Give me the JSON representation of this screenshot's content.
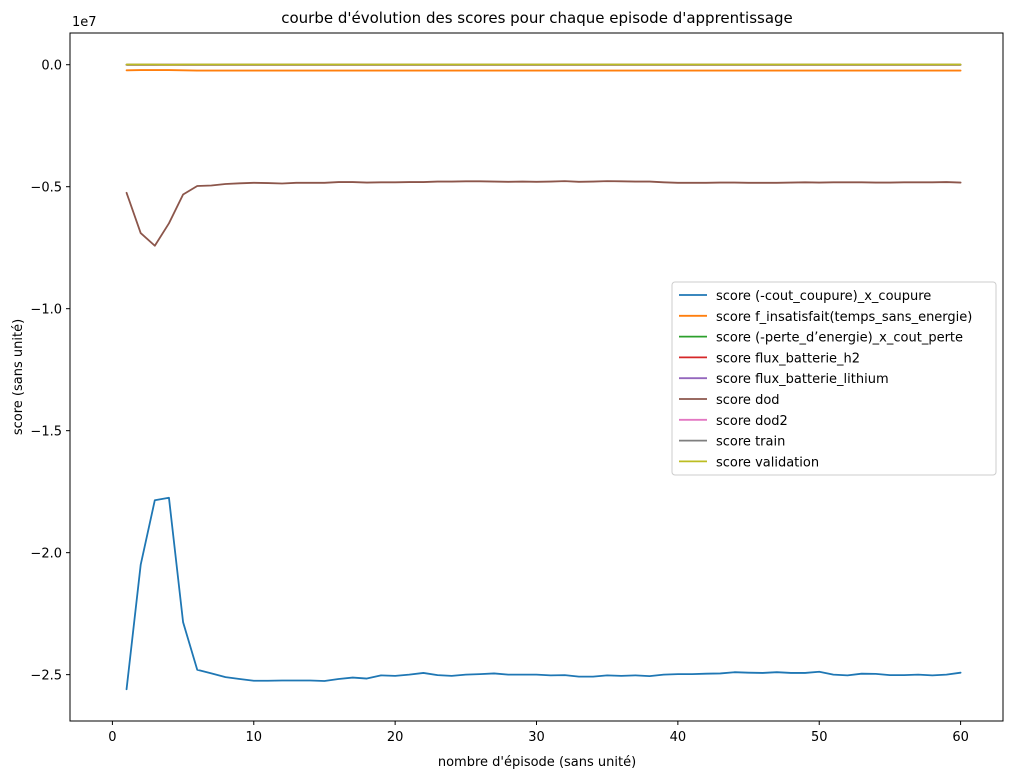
{
  "chart_data": {
    "type": "line",
    "title": "courbe d'évolution des scores pour chaque episode d'apprentissage",
    "xlabel": "nombre d'épisode (sans unité)",
    "ylabel": "score (sans unité)",
    "y_scale_label": "1e7",
    "y_multiplier": 10000000,
    "xlim": [
      -3,
      63
    ],
    "ylim": [
      -2.69,
      0.13
    ],
    "x_ticks": [
      0,
      10,
      20,
      30,
      40,
      50,
      60
    ],
    "x_tick_labels": [
      "0",
      "10",
      "20",
      "30",
      "40",
      "50",
      "60"
    ],
    "y_ticks": [
      0.0,
      -0.5,
      -1.0,
      -1.5,
      -2.0,
      -2.5
    ],
    "y_tick_labels": [
      "0.0",
      "−0.5",
      "−1.0",
      "−1.5",
      "−2.0",
      "−2.5"
    ],
    "grid": false,
    "legend_position": "center-right",
    "series": [
      {
        "name": "score (-cout_coupure)_x_coupure",
        "color": "#1f77b4",
        "x_start": 1,
        "x_step": 1,
        "values": [
          -2.56,
          -2.05,
          -1.785,
          -1.775,
          -2.285,
          -2.48,
          -2.495,
          -2.51,
          -2.518,
          -2.525,
          -2.525,
          -2.524,
          -2.524,
          -2.524,
          -2.526,
          -2.518,
          -2.512,
          -2.516,
          -2.503,
          -2.505,
          -2.5,
          -2.493,
          -2.502,
          -2.505,
          -2.5,
          -2.498,
          -2.495,
          -2.5,
          -2.5,
          -2.5,
          -2.503,
          -2.502,
          -2.508,
          -2.508,
          -2.503,
          -2.505,
          -2.503,
          -2.506,
          -2.5,
          -2.498,
          -2.498,
          -2.496,
          -2.495,
          -2.49,
          -2.492,
          -2.493,
          -2.49,
          -2.493,
          -2.493,
          -2.488,
          -2.5,
          -2.503,
          -2.496,
          -2.497,
          -2.502,
          -2.502,
          -2.5,
          -2.503,
          -2.5,
          -2.492
        ]
      },
      {
        "name": "score f_insatisfait(temps_sans_energie)",
        "color": "#ff7f0e",
        "x_start": 1,
        "x_step": 1,
        "values": [
          -0.023,
          -0.022,
          -0.022,
          -0.022,
          -0.023,
          -0.024,
          -0.024,
          -0.024,
          -0.024,
          -0.024,
          -0.024,
          -0.024,
          -0.024,
          -0.024,
          -0.024,
          -0.024,
          -0.024,
          -0.024,
          -0.024,
          -0.024,
          -0.024,
          -0.024,
          -0.024,
          -0.024,
          -0.024,
          -0.024,
          -0.024,
          -0.024,
          -0.024,
          -0.024,
          -0.024,
          -0.024,
          -0.024,
          -0.024,
          -0.024,
          -0.024,
          -0.024,
          -0.024,
          -0.024,
          -0.024,
          -0.024,
          -0.024,
          -0.024,
          -0.024,
          -0.024,
          -0.024,
          -0.024,
          -0.024,
          -0.024,
          -0.024,
          -0.024,
          -0.024,
          -0.024,
          -0.024,
          -0.024,
          -0.024,
          -0.024,
          -0.024,
          -0.024,
          -0.024
        ]
      },
      {
        "name": "score (-perte_d’energie)_x_cout_perte",
        "color": "#2ca02c",
        "x_start": 1,
        "x_step": 1,
        "values": [
          0,
          0,
          0,
          0,
          0,
          0,
          0,
          0,
          0,
          0,
          0,
          0,
          0,
          0,
          0,
          0,
          0,
          0,
          0,
          0,
          0,
          0,
          0,
          0,
          0,
          0,
          0,
          0,
          0,
          0,
          0,
          0,
          0,
          0,
          0,
          0,
          0,
          0,
          0,
          0,
          0,
          0,
          0,
          0,
          0,
          0,
          0,
          0,
          0,
          0,
          0,
          0,
          0,
          0,
          0,
          0,
          0,
          0,
          0,
          0
        ]
      },
      {
        "name": "score flux_batterie_h2",
        "color": "#d62728",
        "x_start": 1,
        "x_step": 1,
        "values": [
          0,
          0,
          0,
          0,
          0,
          0,
          0,
          0,
          0,
          0,
          0,
          0,
          0,
          0,
          0,
          0,
          0,
          0,
          0,
          0,
          0,
          0,
          0,
          0,
          0,
          0,
          0,
          0,
          0,
          0,
          0,
          0,
          0,
          0,
          0,
          0,
          0,
          0,
          0,
          0,
          0,
          0,
          0,
          0,
          0,
          0,
          0,
          0,
          0,
          0,
          0,
          0,
          0,
          0,
          0,
          0,
          0,
          0,
          0,
          0
        ]
      },
      {
        "name": "score flux_batterie_lithium",
        "color": "#9467bd",
        "x_start": 1,
        "x_step": 1,
        "values": [
          0,
          0,
          0,
          0,
          0,
          0,
          0,
          0,
          0,
          0,
          0,
          0,
          0,
          0,
          0,
          0,
          0,
          0,
          0,
          0,
          0,
          0,
          0,
          0,
          0,
          0,
          0,
          0,
          0,
          0,
          0,
          0,
          0,
          0,
          0,
          0,
          0,
          0,
          0,
          0,
          0,
          0,
          0,
          0,
          0,
          0,
          0,
          0,
          0,
          0,
          0,
          0,
          0,
          0,
          0,
          0,
          0,
          0,
          0,
          0
        ]
      },
      {
        "name": "score dod",
        "color": "#8c564b",
        "x_start": 1,
        "x_step": 1,
        "values": [
          -0.525,
          -0.69,
          -0.742,
          -0.65,
          -0.532,
          -0.497,
          -0.495,
          -0.489,
          -0.486,
          -0.484,
          -0.485,
          -0.487,
          -0.484,
          -0.484,
          -0.484,
          -0.481,
          -0.481,
          -0.483,
          -0.482,
          -0.482,
          -0.481,
          -0.481,
          -0.479,
          -0.479,
          -0.478,
          -0.478,
          -0.479,
          -0.48,
          -0.479,
          -0.48,
          -0.479,
          -0.477,
          -0.48,
          -0.479,
          -0.477,
          -0.478,
          -0.479,
          -0.479,
          -0.482,
          -0.484,
          -0.484,
          -0.484,
          -0.483,
          -0.483,
          -0.484,
          -0.484,
          -0.484,
          -0.483,
          -0.482,
          -0.483,
          -0.482,
          -0.482,
          -0.482,
          -0.483,
          -0.483,
          -0.482,
          -0.482,
          -0.482,
          -0.481,
          -0.483
        ]
      },
      {
        "name": "score dod2",
        "color": "#e377c2",
        "x_start": 1,
        "x_step": 1,
        "values": [
          0,
          0,
          0,
          0,
          0,
          0,
          0,
          0,
          0,
          0,
          0,
          0,
          0,
          0,
          0,
          0,
          0,
          0,
          0,
          0,
          0,
          0,
          0,
          0,
          0,
          0,
          0,
          0,
          0,
          0,
          0,
          0,
          0,
          0,
          0,
          0,
          0,
          0,
          0,
          0,
          0,
          0,
          0,
          0,
          0,
          0,
          0,
          0,
          0,
          0,
          0,
          0,
          0,
          0,
          0,
          0,
          0,
          0,
          0,
          0
        ]
      },
      {
        "name": "score train",
        "color": "#7f7f7f",
        "x_start": 1,
        "x_step": 1,
        "values": [
          0,
          0,
          0,
          0,
          0,
          0,
          0,
          0,
          0,
          0,
          0,
          0,
          0,
          0,
          0,
          0,
          0,
          0,
          0,
          0,
          0,
          0,
          0,
          0,
          0,
          0,
          0,
          0,
          0,
          0,
          0,
          0,
          0,
          0,
          0,
          0,
          0,
          0,
          0,
          0,
          0,
          0,
          0,
          0,
          0,
          0,
          0,
          0,
          0,
          0,
          0,
          0,
          0,
          0,
          0,
          0,
          0,
          0,
          0,
          0
        ]
      },
      {
        "name": "score validation",
        "color": "#bcbd22",
        "x_start": 1,
        "x_step": 1,
        "values": [
          0.001,
          0.001,
          0.001,
          0.0,
          0.001,
          0.001,
          0.001,
          0.001,
          0.001,
          0.001,
          0.001,
          0.001,
          0.001,
          0.001,
          0.001,
          0.001,
          0.001,
          0.001,
          0.001,
          0.001,
          0.001,
          0.001,
          0.001,
          0.001,
          0.001,
          0.001,
          0.001,
          0.001,
          0.001,
          0.001,
          0.001,
          0.001,
          0.001,
          0.001,
          0.001,
          0.001,
          0.001,
          0.001,
          0.001,
          0.001,
          0.001,
          0.001,
          0.001,
          0.001,
          0.001,
          0.001,
          0.001,
          0.001,
          0.001,
          0.001,
          0.001,
          0.001,
          0.001,
          0.001,
          0.001,
          0.001,
          0.001,
          0.001,
          0.001,
          0.001
        ]
      }
    ]
  }
}
